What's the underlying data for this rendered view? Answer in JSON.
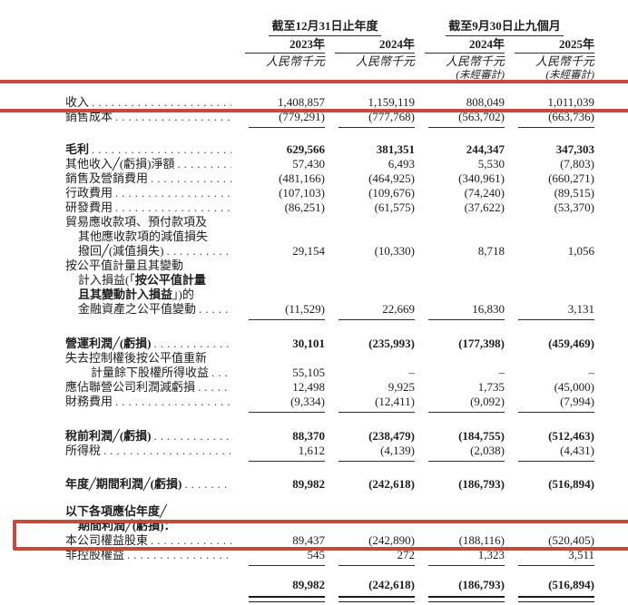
{
  "colors": {
    "highlight_red": "#c9473c",
    "text": "#1e1e1e"
  },
  "table": {
    "header": {
      "group1": {
        "title": "截至12月31日止年度",
        "cols": [
          "2023年",
          "2024年"
        ]
      },
      "group2": {
        "title": "截至9月30日止九個月",
        "cols": [
          "2024年",
          "2025年"
        ]
      },
      "unit_label": "人民幣千元",
      "unaudited_label": "(未經審計)"
    },
    "rows": [
      {
        "name": "revenue",
        "label": [
          "收入"
        ],
        "values": [
          "1,408,857",
          "1,159,119",
          "808,049",
          "1,011,039"
        ],
        "leader": true,
        "highlight": "revenue"
      },
      {
        "name": "cost-of-sales",
        "label": [
          "銷售成本"
        ],
        "values": [
          "(779,291)",
          "(777,768)",
          "(563,702)",
          "(663,736)"
        ],
        "leader": true,
        "rule": "single"
      },
      {
        "name": "gross-profit",
        "gap": 14,
        "label": [
          "毛利"
        ],
        "bold": true,
        "values": [
          "629,566",
          "381,351",
          "244,347",
          "347,303"
        ],
        "leader": true
      },
      {
        "name": "other-income-net",
        "label": [
          "其他收入╱(虧損)淨額"
        ],
        "values": [
          "57,430",
          "6,493",
          "5,530",
          "(7,803)"
        ],
        "leader": true
      },
      {
        "name": "selling-marketing-expenses",
        "label": [
          "銷售及營銷費用"
        ],
        "values": [
          "(481,166)",
          "(464,925)",
          "(340,961)",
          "(660,271)"
        ],
        "leader": true
      },
      {
        "name": "admin-expenses",
        "label": [
          "行政費用"
        ],
        "values": [
          "(107,103)",
          "(109,676)",
          "(74,240)",
          "(89,515)"
        ],
        "leader": true
      },
      {
        "name": "rd-expenses",
        "label": [
          "研發費用"
        ],
        "values": [
          "(86,251)",
          "(61,575)",
          "(37,622)",
          "(53,370)"
        ],
        "leader": true
      },
      {
        "name": "impairment-reversal",
        "label": [
          "貿易應收款項、預付款項及",
          "其他應收款項的減值損失",
          "撥回╱(減值損失)"
        ],
        "indents": [
          0,
          1,
          1
        ],
        "values": [
          "29,154",
          "(10,330)",
          "8,718",
          "1,056"
        ],
        "leader": true
      },
      {
        "name": "fvtpl-fair-value-change",
        "label": [
          "按公平值計量且其變動",
          [
            {
              "t": "計入損益(「"
            },
            {
              "t": "按公平值計量",
              "b": true
            }
          ],
          [
            {
              "t": "且其變動計入損益",
              "b": true
            },
            {
              "t": "」)的"
            }
          ],
          "金融資產之公平值變動"
        ],
        "indents": [
          0,
          1,
          1,
          1
        ],
        "values": [
          "(11,529)",
          "22,669",
          "16,830",
          "3,131"
        ],
        "leader": true,
        "rule": "single"
      },
      {
        "name": "operating-profit",
        "gap": 16,
        "label": [
          "營運利潤╱(虧損)"
        ],
        "bold": true,
        "values": [
          "30,101",
          "(235,993)",
          "(177,398)",
          "(459,469)"
        ],
        "leader": true
      },
      {
        "name": "remeasurement-gain",
        "label": [
          "失去控制權後按公平值重新",
          "計量餘下股權所得收益"
        ],
        "indents": [
          0,
          2
        ],
        "values": [
          "55,105",
          "–",
          "–",
          "–"
        ],
        "leader": true
      },
      {
        "name": "share-of-associates",
        "label": [
          "應佔聯營公司利潤減虧損"
        ],
        "values": [
          "12,498",
          "9,925",
          "1,735",
          "(45,000)"
        ],
        "leader": true
      },
      {
        "name": "finance-costs",
        "label": [
          "財務費用"
        ],
        "values": [
          "(9,334)",
          "(12,411)",
          "(9,092)",
          "(7,994)"
        ],
        "leader": true,
        "rule": "single"
      },
      {
        "name": "profit-before-tax",
        "gap": 16,
        "label": [
          "稅前利潤╱(虧損)"
        ],
        "bold": true,
        "values": [
          "88,370",
          "(238,479)",
          "(184,755)",
          "(512,463)"
        ],
        "leader": true
      },
      {
        "name": "income-tax",
        "label": [
          "所得稅"
        ],
        "values": [
          "1,612",
          "(4,139)",
          "(2,038)",
          "(4,431)"
        ],
        "leader": true,
        "rule": "single"
      },
      {
        "name": "profit-for-period",
        "gap": 15,
        "label": [
          "年度╱期間利潤╱(虧損)"
        ],
        "bold": true,
        "values": [
          "89,982",
          "(242,618)",
          "(186,793)",
          "(516,894)"
        ],
        "leader": true
      },
      {
        "name": "attributable-heading",
        "gap": 14,
        "label": [
          "以下各項應佔年度╱",
          "期間利潤╱(虧損)："
        ],
        "indents": [
          0,
          1
        ],
        "bold": true
      },
      {
        "name": "equity-shareholders",
        "label": [
          "本公司權益股東"
        ],
        "values": [
          "89,437",
          "(242,890)",
          "(188,116)",
          "(520,405)"
        ],
        "leader": true,
        "highlight": "equity"
      },
      {
        "name": "non-controlling-interests",
        "label": [
          "非控股權益"
        ],
        "values": [
          "545",
          "272",
          "1,323",
          "3,511"
        ],
        "leader": true,
        "rule": "single"
      },
      {
        "name": "total",
        "gap": 11,
        "label": [],
        "bold": true,
        "values": [
          "89,982",
          "(242,618)",
          "(186,793)",
          "(516,894)"
        ],
        "rule": "double"
      }
    ]
  }
}
